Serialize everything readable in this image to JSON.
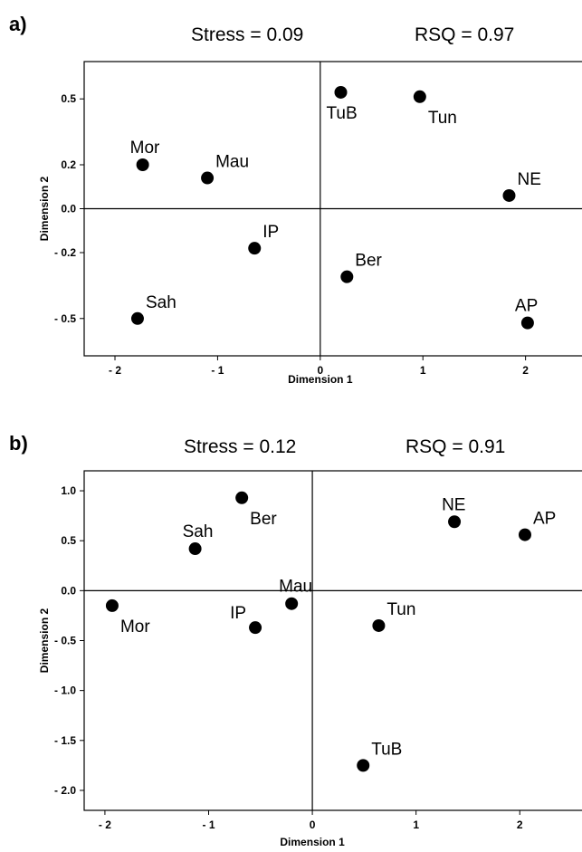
{
  "chart_data": [
    {
      "type": "scatter",
      "panel_label": "a)",
      "stress_text": "Stress = 0.09",
      "rsq_text": "RSQ = 0.97",
      "xlabel": "Dimension 1",
      "ylabel": "Dimension 2",
      "xlim": [
        -2.3,
        2.55
      ],
      "ylim": [
        -0.67,
        0.67
      ],
      "xticks": [
        {
          "v": -2,
          "label": "- 2"
        },
        {
          "v": -1,
          "label": "- 1"
        },
        {
          "v": 0,
          "label": "0"
        },
        {
          "v": 1,
          "label": "1"
        },
        {
          "v": 2,
          "label": "2"
        }
      ],
      "yticks": [
        {
          "v": 0.5,
          "label": "0.5"
        },
        {
          "v": 0.2,
          "label": "0.2"
        },
        {
          "v": 0.0,
          "label": "0.0"
        },
        {
          "v": -0.2,
          "label": "- 0.2"
        },
        {
          "v": -0.5,
          "label": "- 0.5"
        }
      ],
      "reference_lines": {
        "x": 0,
        "y": 0
      },
      "points": [
        {
          "label": "TuB",
          "x": 0.2,
          "y": 0.53,
          "label_pos": "below"
        },
        {
          "label": "Tun",
          "x": 0.97,
          "y": 0.51,
          "label_pos": "below-right"
        },
        {
          "label": "Mor",
          "x": -1.73,
          "y": 0.2,
          "label_pos": "above"
        },
        {
          "label": "Mau",
          "x": -1.1,
          "y": 0.14,
          "label_pos": "above-right"
        },
        {
          "label": "NE",
          "x": 1.84,
          "y": 0.06,
          "label_pos": "above-right"
        },
        {
          "label": "IP",
          "x": -0.64,
          "y": -0.18,
          "label_pos": "above-right"
        },
        {
          "label": "Ber",
          "x": 0.26,
          "y": -0.31,
          "label_pos": "above-right"
        },
        {
          "label": "Sah",
          "x": -1.78,
          "y": -0.5,
          "label_pos": "above-right"
        },
        {
          "label": "AP",
          "x": 2.02,
          "y": -0.52,
          "label_pos": "above"
        }
      ]
    },
    {
      "type": "scatter",
      "panel_label": "b)",
      "stress_text": "Stress = 0.12",
      "rsq_text": "RSQ = 0.91",
      "xlabel": "Dimension 1",
      "ylabel": "Dimension 2",
      "xlim": [
        -2.2,
        2.6
      ],
      "ylim": [
        -2.2,
        1.2
      ],
      "xticks": [
        {
          "v": -2,
          "label": "- 2"
        },
        {
          "v": -1,
          "label": "- 1"
        },
        {
          "v": 0,
          "label": "0"
        },
        {
          "v": 1,
          "label": "1"
        },
        {
          "v": 2,
          "label": "2"
        }
      ],
      "yticks": [
        {
          "v": 1.0,
          "label": "1.0"
        },
        {
          "v": 0.5,
          "label": "0.5"
        },
        {
          "v": 0.0,
          "label": "0.0"
        },
        {
          "v": -0.5,
          "label": "- 0.5"
        },
        {
          "v": -1.0,
          "label": "- 1.0"
        },
        {
          "v": -1.5,
          "label": "- 1.5"
        },
        {
          "v": -2.0,
          "label": "- 2.0"
        }
      ],
      "reference_lines": {
        "x": 0,
        "y": 0
      },
      "points": [
        {
          "label": "Ber",
          "x": -0.68,
          "y": 0.93,
          "label_pos": "below-right"
        },
        {
          "label": "NE",
          "x": 1.37,
          "y": 0.69,
          "label_pos": "above"
        },
        {
          "label": "AP",
          "x": 2.05,
          "y": 0.56,
          "label_pos": "above-right"
        },
        {
          "label": "Sah",
          "x": -1.13,
          "y": 0.42,
          "label_pos": "above"
        },
        {
          "label": "Mor",
          "x": -1.93,
          "y": -0.15,
          "label_pos": "below-right"
        },
        {
          "label": "Mau",
          "x": -0.2,
          "y": -0.13,
          "label_pos": "above"
        },
        {
          "label": "IP",
          "x": -0.55,
          "y": -0.37,
          "label_pos": "above-left"
        },
        {
          "label": "Tun",
          "x": 0.64,
          "y": -0.35,
          "label_pos": "above-right"
        },
        {
          "label": "TuB",
          "x": 0.49,
          "y": -1.75,
          "label_pos": "above-right"
        }
      ]
    }
  ]
}
